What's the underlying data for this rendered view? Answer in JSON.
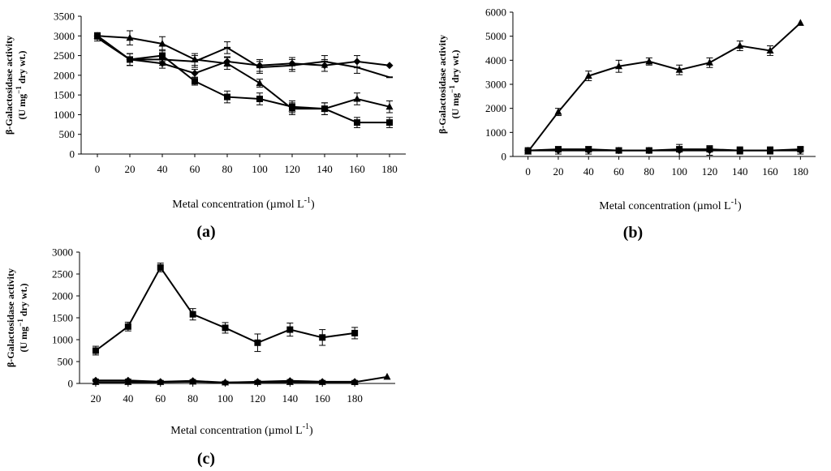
{
  "chart_data": [
    {
      "panel_label": "(a)",
      "type": "line",
      "x": [
        0,
        20,
        40,
        60,
        80,
        100,
        120,
        140,
        160,
        180
      ],
      "xlabel": "Metal concentration (µmol L",
      "xlabel_sup": "-1",
      "xlabel_end": ")",
      "ylabel_line1": "β-Galactosidase activity",
      "ylabel_line2": "(U mg",
      "ylabel_sup": "−1",
      "ylabel_line2_end": " dry wt.)",
      "ylim": [
        0,
        3500
      ],
      "yticks": [
        0,
        500,
        1000,
        1500,
        2000,
        2500,
        3000,
        3500
      ],
      "series": [
        {
          "marker": "diamond",
          "values": [
            3000,
            2400,
            2300,
            2050,
            2350,
            2250,
            2300,
            2250,
            2350,
            2250
          ],
          "err": [
            80,
            150,
            120,
            100,
            120,
            150,
            150,
            150,
            150,
            0
          ]
        },
        {
          "marker": "square",
          "values": [
            3000,
            2400,
            2500,
            1850,
            1450,
            1400,
            1200,
            1150,
            800,
            800
          ],
          "err": [
            80,
            150,
            150,
            100,
            150,
            150,
            150,
            150,
            130,
            130
          ]
        },
        {
          "marker": "triangle",
          "values": [
            3000,
            2950,
            2800,
            2400,
            2300,
            1800,
            1150,
            1150,
            1400,
            1200
          ],
          "err": [
            80,
            180,
            180,
            150,
            150,
            100,
            150,
            150,
            150,
            150
          ]
        },
        {
          "marker": "none",
          "values": [
            2950,
            2400,
            2400,
            2350,
            2700,
            2200,
            2250,
            2350,
            2200,
            1950
          ],
          "err": [
            80,
            150,
            150,
            150,
            150,
            150,
            150,
            150,
            150,
            0
          ]
        }
      ]
    },
    {
      "panel_label": "(b)",
      "type": "line",
      "x": [
        0,
        20,
        40,
        60,
        80,
        100,
        120,
        140,
        160,
        180
      ],
      "xlabel": "Metal concentration (µmol L",
      "xlabel_sup": "-1",
      "xlabel_end": ")",
      "ylabel_line1": "β-Galactosidase activity",
      "ylabel_line2": "(U mg",
      "ylabel_sup": "−1",
      "ylabel_line2_end": " dry wt.)",
      "ylim": [
        0,
        6000
      ],
      "yticks": [
        0,
        1000,
        2000,
        3000,
        4000,
        5000,
        6000
      ],
      "series": [
        {
          "marker": "triangle",
          "values": [
            200,
            1850,
            3350,
            3750,
            3950,
            3600,
            3900,
            4600,
            4400,
            5550
          ],
          "err": [
            50,
            150,
            200,
            250,
            150,
            200,
            200,
            200,
            200,
            0
          ]
        },
        {
          "marker": "square",
          "values": [
            250,
            300,
            300,
            250,
            250,
            300,
            300,
            250,
            250,
            300
          ],
          "err": [
            50,
            100,
            100,
            100,
            80,
            100,
            80,
            80,
            100,
            80
          ]
        },
        {
          "marker": "diamond",
          "values": [
            250,
            250,
            250,
            250,
            250,
            250,
            250,
            250,
            250,
            250
          ],
          "err": [
            50,
            150,
            150,
            100,
            100,
            250,
            200,
            150,
            150,
            150
          ]
        }
      ]
    },
    {
      "panel_label": "(c)",
      "type": "line",
      "x": [
        20,
        40,
        60,
        80,
        100,
        120,
        140,
        160,
        180
      ],
      "xlabel": "Metal concentration (µmol L",
      "xlabel_sup": "-1",
      "xlabel_end": ")",
      "ylabel_line1": "β-Galactosidase activity",
      "ylabel_line2": "(U mg",
      "ylabel_sup": "−1",
      "ylabel_line2_end": " dry wt.)",
      "ylim": [
        0,
        3000
      ],
      "yticks": [
        0,
        500,
        1000,
        1500,
        2000,
        2500,
        3000
      ],
      "series": [
        {
          "marker": "square",
          "values": [
            750,
            1300,
            2650,
            1580,
            1270,
            930,
            1230,
            1050,
            1150
          ],
          "err": [
            100,
            100,
            100,
            130,
            120,
            200,
            150,
            180,
            130
          ]
        },
        {
          "marker": "diamond",
          "values": [
            70,
            70,
            40,
            60,
            20,
            40,
            60,
            40,
            40
          ],
          "err": [
            30,
            30,
            30,
            30,
            30,
            30,
            30,
            30,
            30
          ]
        },
        {
          "marker": "triangle",
          "values": [
            30,
            30,
            30,
            40,
            20,
            30,
            30,
            30,
            30
          ],
          "err": [
            30,
            30,
            30,
            30,
            30,
            30,
            30,
            30,
            30
          ]
        },
        {
          "marker": "triangle",
          "x": [
            180,
            200
          ],
          "values": [
            30,
            150
          ],
          "err": [
            0,
            0
          ]
        }
      ]
    }
  ]
}
